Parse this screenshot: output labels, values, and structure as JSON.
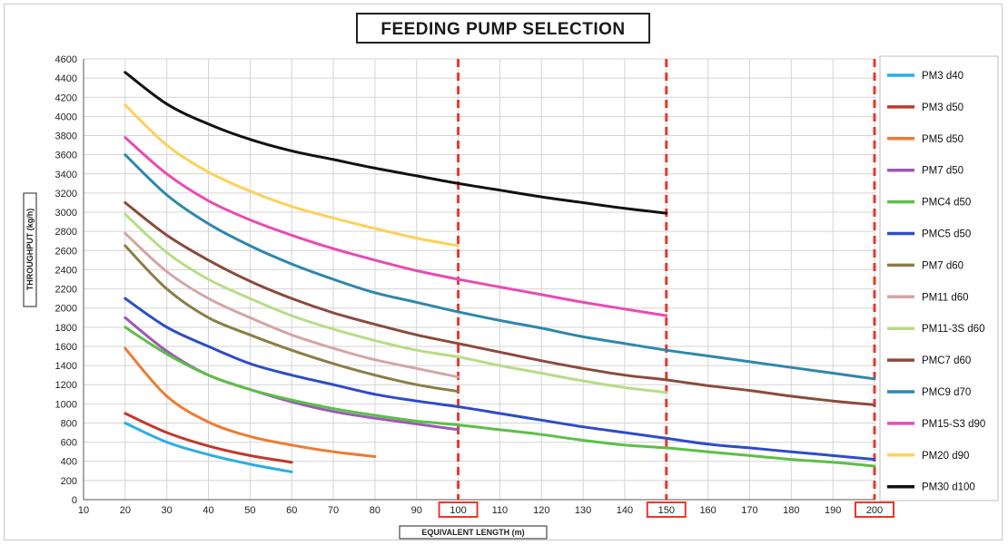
{
  "chart_data": {
    "type": "line",
    "title": "FEEDING PUMP SELECTION",
    "xlabel": "EQUIVALENT LENGTH (m)",
    "ylabel": "THROUGHPUT (kg/h)",
    "xlim": [
      10,
      200
    ],
    "ylim": [
      0,
      4600
    ],
    "x_ticks": [
      10,
      20,
      30,
      40,
      50,
      60,
      70,
      80,
      90,
      100,
      110,
      120,
      130,
      140,
      150,
      160,
      170,
      180,
      190,
      200
    ],
    "y_ticks": [
      0,
      200,
      400,
      600,
      800,
      1000,
      1200,
      1400,
      1600,
      1800,
      2000,
      2200,
      2400,
      2600,
      2800,
      3000,
      3200,
      3400,
      3600,
      3800,
      4000,
      4200,
      4400,
      4600
    ],
    "grid": true,
    "legend_position": "right",
    "highlighted_x": [
      100,
      150,
      200
    ],
    "highlight_color": "#e8392b",
    "series": [
      {
        "name": "PM3 d40",
        "color": "#29aee6",
        "x": [
          20,
          30,
          40,
          50,
          60
        ],
        "y": [
          800,
          600,
          470,
          370,
          290
        ]
      },
      {
        "name": "PM3 d50",
        "color": "#c0392b",
        "x": [
          20,
          30,
          40,
          50,
          60
        ],
        "y": [
          900,
          700,
          560,
          460,
          390
        ]
      },
      {
        "name": "PM5 d50",
        "color": "#ee7b30",
        "x": [
          20,
          30,
          40,
          50,
          60,
          70,
          80
        ],
        "y": [
          1580,
          1080,
          810,
          660,
          570,
          500,
          450
        ]
      },
      {
        "name": "PM7 d50",
        "color": "#9b59b6",
        "x": [
          20,
          30,
          40,
          50,
          60,
          70,
          80,
          90,
          100
        ],
        "y": [
          1900,
          1550,
          1300,
          1150,
          1020,
          920,
          850,
          790,
          730
        ]
      },
      {
        "name": "PMC4 d50",
        "color": "#5cbf46",
        "x": [
          20,
          30,
          40,
          50,
          60,
          70,
          80,
          90,
          100,
          110,
          120,
          130,
          140,
          150,
          160,
          170,
          180,
          190,
          200
        ],
        "y": [
          1800,
          1520,
          1300,
          1150,
          1040,
          950,
          880,
          820,
          780,
          730,
          680,
          620,
          570,
          540,
          500,
          460,
          420,
          390,
          350
        ]
      },
      {
        "name": "PMC5 d50",
        "color": "#2d4cc8",
        "x": [
          20,
          30,
          40,
          50,
          60,
          70,
          80,
          90,
          100,
          110,
          120,
          130,
          140,
          150,
          160,
          170,
          180,
          190,
          200
        ],
        "y": [
          2100,
          1800,
          1600,
          1420,
          1300,
          1200,
          1100,
          1030,
          970,
          900,
          830,
          760,
          700,
          640,
          580,
          540,
          500,
          460,
          420
        ]
      },
      {
        "name": "PM7 d60",
        "color": "#8b7d45",
        "x": [
          20,
          30,
          40,
          50,
          60,
          70,
          80,
          90,
          100
        ],
        "y": [
          2650,
          2200,
          1900,
          1720,
          1560,
          1420,
          1300,
          1200,
          1130
        ]
      },
      {
        "name": "PM11 d60",
        "color": "#d4a5a5",
        "x": [
          20,
          30,
          40,
          50,
          60,
          70,
          80,
          90,
          100
        ],
        "y": [
          2780,
          2380,
          2100,
          1900,
          1720,
          1580,
          1460,
          1370,
          1280
        ]
      },
      {
        "name": "PM11-3S d60",
        "color": "#b6dd86",
        "x": [
          20,
          30,
          40,
          50,
          60,
          70,
          80,
          90,
          100,
          110,
          120,
          130,
          140,
          150
        ],
        "y": [
          2980,
          2580,
          2300,
          2100,
          1920,
          1780,
          1660,
          1560,
          1490,
          1400,
          1320,
          1240,
          1170,
          1120
        ]
      },
      {
        "name": "PMC7 d60",
        "color": "#8b4a3c",
        "x": [
          20,
          30,
          40,
          50,
          60,
          70,
          80,
          90,
          100,
          110,
          120,
          130,
          140,
          150,
          160,
          170,
          180,
          190,
          200
        ],
        "y": [
          3100,
          2760,
          2500,
          2280,
          2100,
          1950,
          1830,
          1720,
          1630,
          1540,
          1450,
          1370,
          1300,
          1250,
          1190,
          1140,
          1080,
          1030,
          990
        ]
      },
      {
        "name": "PMC9 d70",
        "color": "#2e87ad",
        "x": [
          20,
          30,
          40,
          50,
          60,
          70,
          80,
          90,
          100,
          110,
          120,
          130,
          140,
          150,
          160,
          170,
          180,
          190,
          200
        ],
        "y": [
          3600,
          3180,
          2880,
          2650,
          2460,
          2300,
          2160,
          2060,
          1960,
          1870,
          1790,
          1700,
          1630,
          1560,
          1500,
          1440,
          1380,
          1320,
          1260
        ]
      },
      {
        "name": "PM15-S3 d90",
        "color": "#e84bb3",
        "x": [
          20,
          30,
          40,
          50,
          60,
          70,
          80,
          90,
          100,
          110,
          120,
          130,
          140,
          150
        ],
        "y": [
          3780,
          3400,
          3120,
          2920,
          2760,
          2620,
          2500,
          2390,
          2300,
          2220,
          2140,
          2060,
          1990,
          1920
        ]
      },
      {
        "name": "PM20 d90",
        "color": "#fdd15a",
        "x": [
          20,
          30,
          40,
          50,
          60,
          70,
          80,
          90,
          100
        ],
        "y": [
          4120,
          3700,
          3420,
          3220,
          3060,
          2940,
          2830,
          2730,
          2650
        ]
      },
      {
        "name": "PM30 d100",
        "color": "#111111",
        "x": [
          20,
          30,
          40,
          50,
          60,
          70,
          80,
          90,
          100,
          110,
          120,
          130,
          140,
          150
        ],
        "y": [
          4460,
          4130,
          3920,
          3760,
          3640,
          3550,
          3460,
          3380,
          3300,
          3230,
          3160,
          3100,
          3040,
          2990
        ]
      }
    ]
  }
}
